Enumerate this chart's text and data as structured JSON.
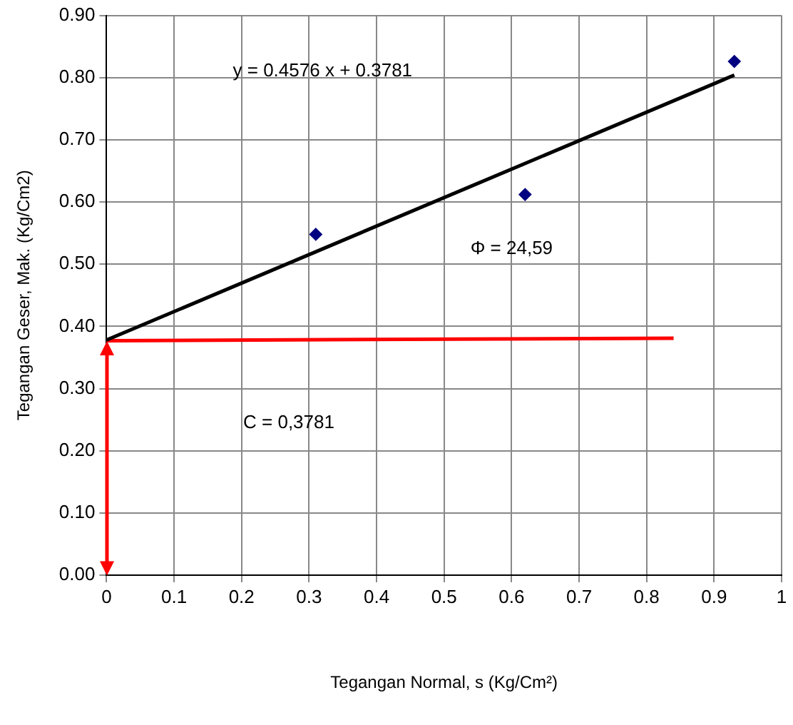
{
  "chart_data": {
    "type": "scatter",
    "xlabel": "Tegangan Normal, s (Kg/Cm²)",
    "ylabel": "Tegangan Geser, Mak. (Kg/Cm2)",
    "xlim": [
      0,
      1
    ],
    "xticks": [
      0,
      0.1,
      0.2,
      0.3,
      0.4,
      0.5,
      0.6,
      0.7,
      0.8,
      0.9,
      1
    ],
    "ylim": [
      0,
      0.9
    ],
    "yticks": [
      {
        "value": 0,
        "label": "0.00"
      },
      {
        "value": 0.1,
        "label": "0.10"
      },
      {
        "value": 0.2,
        "label": "0.20"
      },
      {
        "value": 0.3,
        "label": "0.30"
      },
      {
        "value": 0.4,
        "label": "0.40"
      },
      {
        "value": 0.5,
        "label": "0.50"
      },
      {
        "value": 0.6,
        "label": "0.60"
      },
      {
        "value": 0.7,
        "label": "0.70"
      },
      {
        "value": 0.8,
        "label": "0.80"
      },
      {
        "value": 0.9,
        "label": "0.90"
      }
    ],
    "grid": true,
    "legend": false,
    "series": [
      {
        "type": "scatter",
        "marker": "diamond",
        "color": "#000080",
        "x": [
          0.31,
          0.62,
          0.93
        ],
        "values": [
          0.548,
          0.612,
          0.826
        ]
      },
      {
        "type": "line",
        "marker": "none",
        "color": "#000000",
        "x": [
          0,
          0.93
        ],
        "values": [
          0.378,
          0.804
        ]
      },
      {
        "type": "line",
        "marker": "none",
        "color": "#ff0000",
        "x": [
          0,
          0.84
        ],
        "values": [
          0.377,
          0.381
        ]
      }
    ],
    "annotations": [
      "y = 0.4576 x + 0.3781",
      "Φ = 24,59",
      "C = 0,3781"
    ]
  }
}
